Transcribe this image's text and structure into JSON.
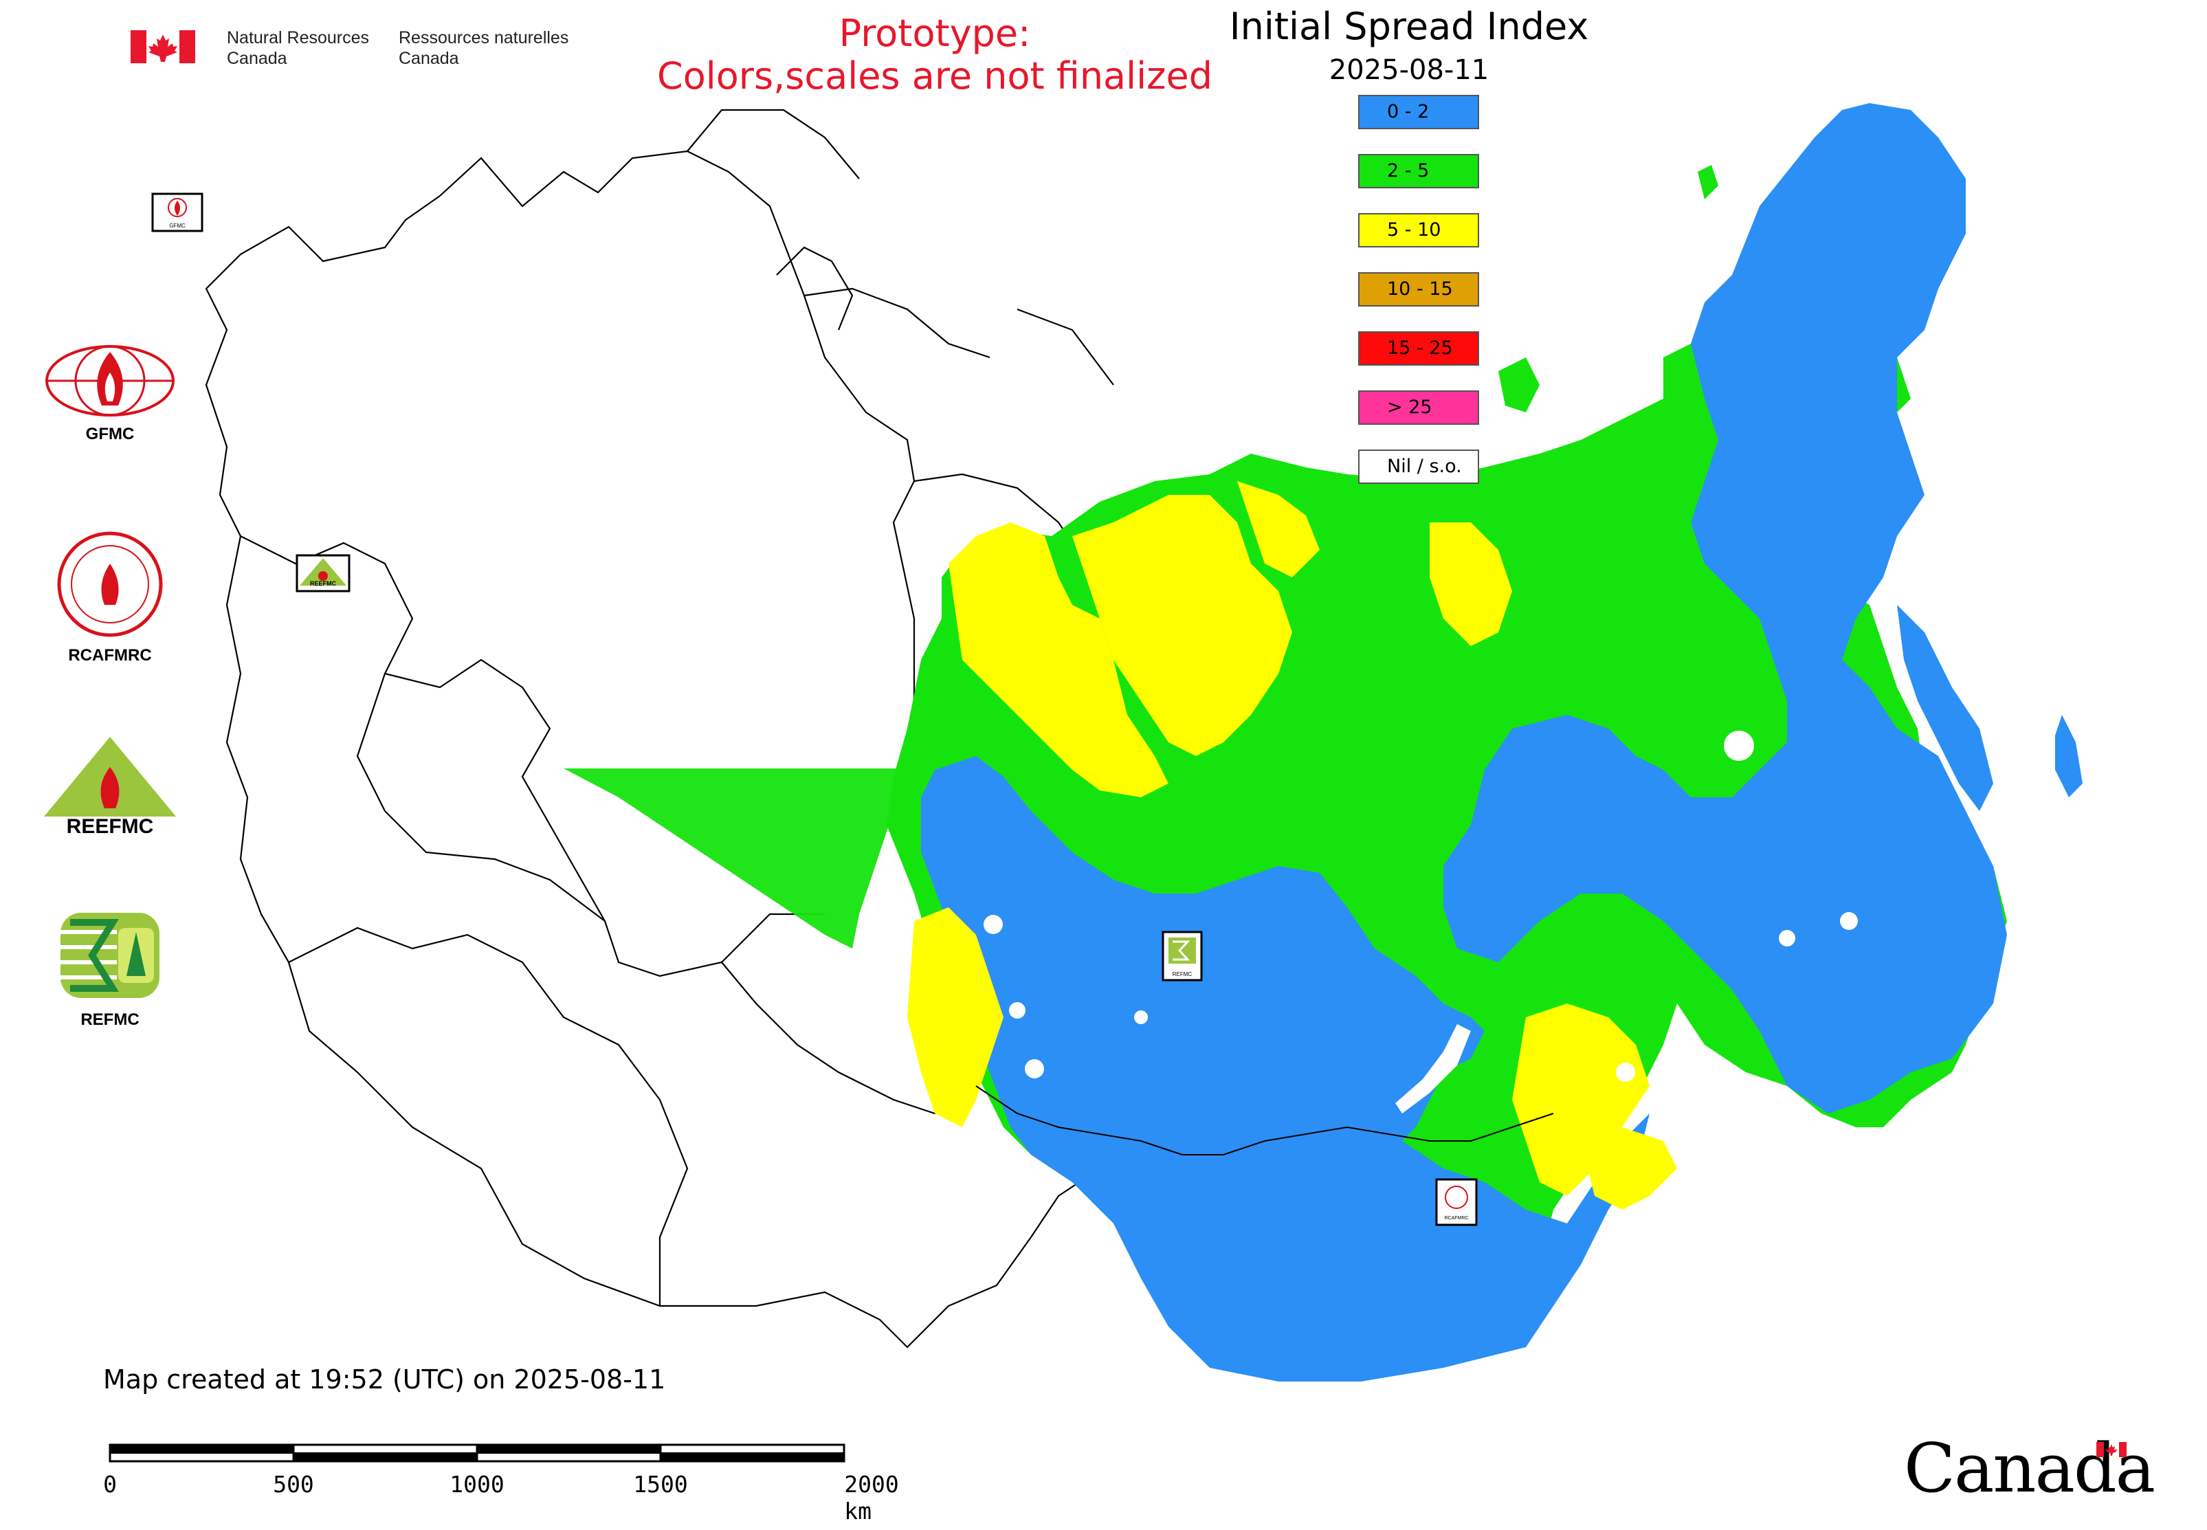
{
  "header": {
    "dept_en_line1": "Natural Resources",
    "dept_en_line2": "Canada",
    "dept_fr_line1": "Ressources naturelles",
    "dept_fr_line2": "Canada",
    "prototype_line1": "Prototype:",
    "prototype_line2": "Colors,scales are not finalized",
    "prototype_color": "#e8172b"
  },
  "map": {
    "title": "Initial Spread Index",
    "date": "2025-08-11",
    "legend": [
      {
        "label": "0 - 2",
        "color": "#2b8ff5"
      },
      {
        "label": "2 - 5",
        "color": "#15e30e"
      },
      {
        "label": "5 - 10",
        "color": "#ffff00"
      },
      {
        "label": "10 - 15",
        "color": "#dfa004"
      },
      {
        "label": "15 - 25",
        "color": "#ff0a0a"
      },
      {
        "label": "> 25",
        "color": "#ff3399"
      },
      {
        "label": "Nil / s.o.",
        "color": "#ffffff"
      }
    ],
    "markers": {
      "gfmc": "GFMC",
      "reefmc": "REEFMC",
      "refmc": "REFMC",
      "rcafmrc": "RCAFMRC"
    }
  },
  "logos": [
    {
      "label": "GFMC",
      "icon": "gfmc-globe-flame-icon"
    },
    {
      "label": "RCAFMRC",
      "icon": "rcafmrc-seal-icon"
    },
    {
      "label": "",
      "icon": "reefmc-triangle-icon",
      "wordmark": "REEFMC"
    },
    {
      "label": "REFMC",
      "icon": "refmc-sigma-icon"
    }
  ],
  "footer": {
    "created": "Map created at 19:52 (UTC) on 2025-08-11",
    "scale_ticks": [
      "0",
      "500",
      "1000",
      "1500",
      "2000 km"
    ],
    "wordmark": "Canada"
  }
}
